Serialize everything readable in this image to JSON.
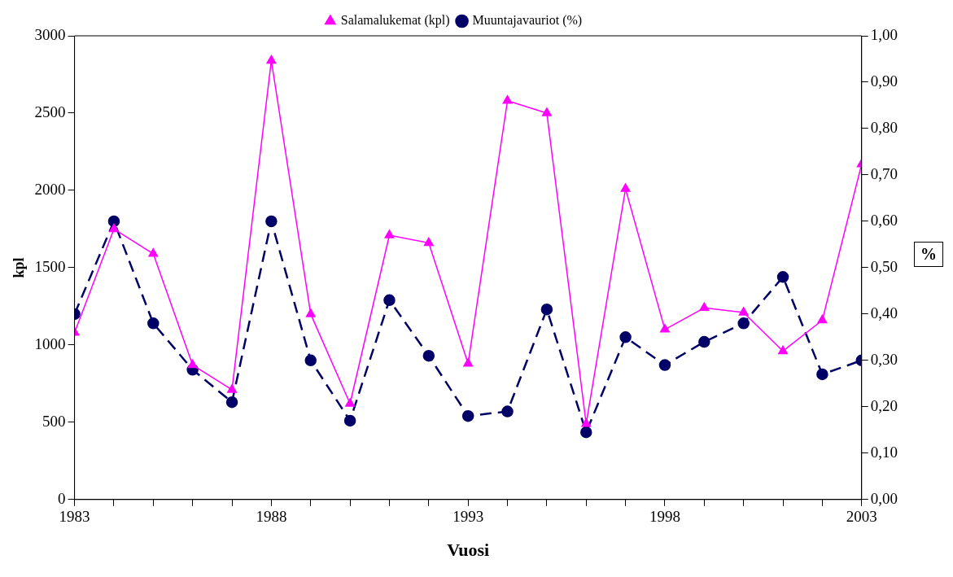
{
  "chart_data": {
    "type": "line",
    "xlabel": "Vuosi",
    "ylabel": "kpl",
    "y2label": "%",
    "x": [
      1983,
      1984,
      1985,
      1986,
      1987,
      1988,
      1989,
      1990,
      1991,
      1992,
      1993,
      1994,
      1995,
      1996,
      1997,
      1998,
      1999,
      2000,
      2001,
      2002,
      2003
    ],
    "series": [
      {
        "name": "Salamalukemat (kpl)",
        "color": "#ff00ff",
        "marker": "triangle",
        "line_style": "solid",
        "values": [
          1080,
          1750,
          1590,
          870,
          710,
          2840,
          1200,
          620,
          1710,
          1660,
          880,
          2580,
          2500,
          490,
          2010,
          1100,
          1240,
          1210,
          960,
          1160,
          2170
        ]
      },
      {
        "name": "Muuntajavauriot (%)",
        "color": "#000066",
        "marker": "circle",
        "line_style": "dashed",
        "axis": "y2",
        "values": [
          0.4,
          0.6,
          0.38,
          0.28,
          0.21,
          0.6,
          0.3,
          0.17,
          0.43,
          0.31,
          0.18,
          0.19,
          0.41,
          0.145,
          0.35,
          0.29,
          0.34,
          0.38,
          0.48,
          0.27,
          0.3
        ]
      }
    ],
    "xlim": [
      1983,
      2003
    ],
    "xticks": [
      1983,
      {
        "value": 1984,
        "label": null
      },
      {
        "value": 1985,
        "label": null
      },
      {
        "value": 1986,
        "label": null
      },
      {
        "value": 1987,
        "label": null
      },
      1988,
      {
        "value": 1989,
        "label": null
      },
      {
        "value": 1990,
        "label": null
      },
      {
        "value": 1991,
        "label": null
      },
      {
        "value": 1992,
        "label": null
      },
      1993,
      {
        "value": 1994,
        "label": null
      },
      {
        "value": 1995,
        "label": null
      },
      {
        "value": 1996,
        "label": null
      },
      {
        "value": 1997,
        "label": null
      },
      1998,
      {
        "value": 1999,
        "label": null
      },
      {
        "value": 2000,
        "label": null
      },
      {
        "value": 2001,
        "label": null
      },
      {
        "value": 2002,
        "label": null
      },
      2003
    ],
    "ylim": [
      0,
      3000
    ],
    "yticks": [
      0,
      500,
      1000,
      1500,
      2000,
      2500,
      3000
    ],
    "y2lim": [
      0,
      1
    ],
    "y2ticks": [
      {
        "value": 0,
        "label": "0,00"
      },
      {
        "value": 0.1,
        "label": "0,10"
      },
      {
        "value": 0.2,
        "label": "0,20"
      },
      {
        "value": 0.3,
        "label": "0,30"
      },
      {
        "value": 0.4,
        "label": "0,40"
      },
      {
        "value": 0.5,
        "label": "0,50"
      },
      {
        "value": 0.6,
        "label": "0,60"
      },
      {
        "value": 0.7,
        "label": "0,70"
      },
      {
        "value": 0.8,
        "label": "0,80"
      },
      {
        "value": 0.9,
        "label": "0,90"
      },
      {
        "value": 1,
        "label": "1,00"
      }
    ],
    "grid": false,
    "legend": "top"
  }
}
